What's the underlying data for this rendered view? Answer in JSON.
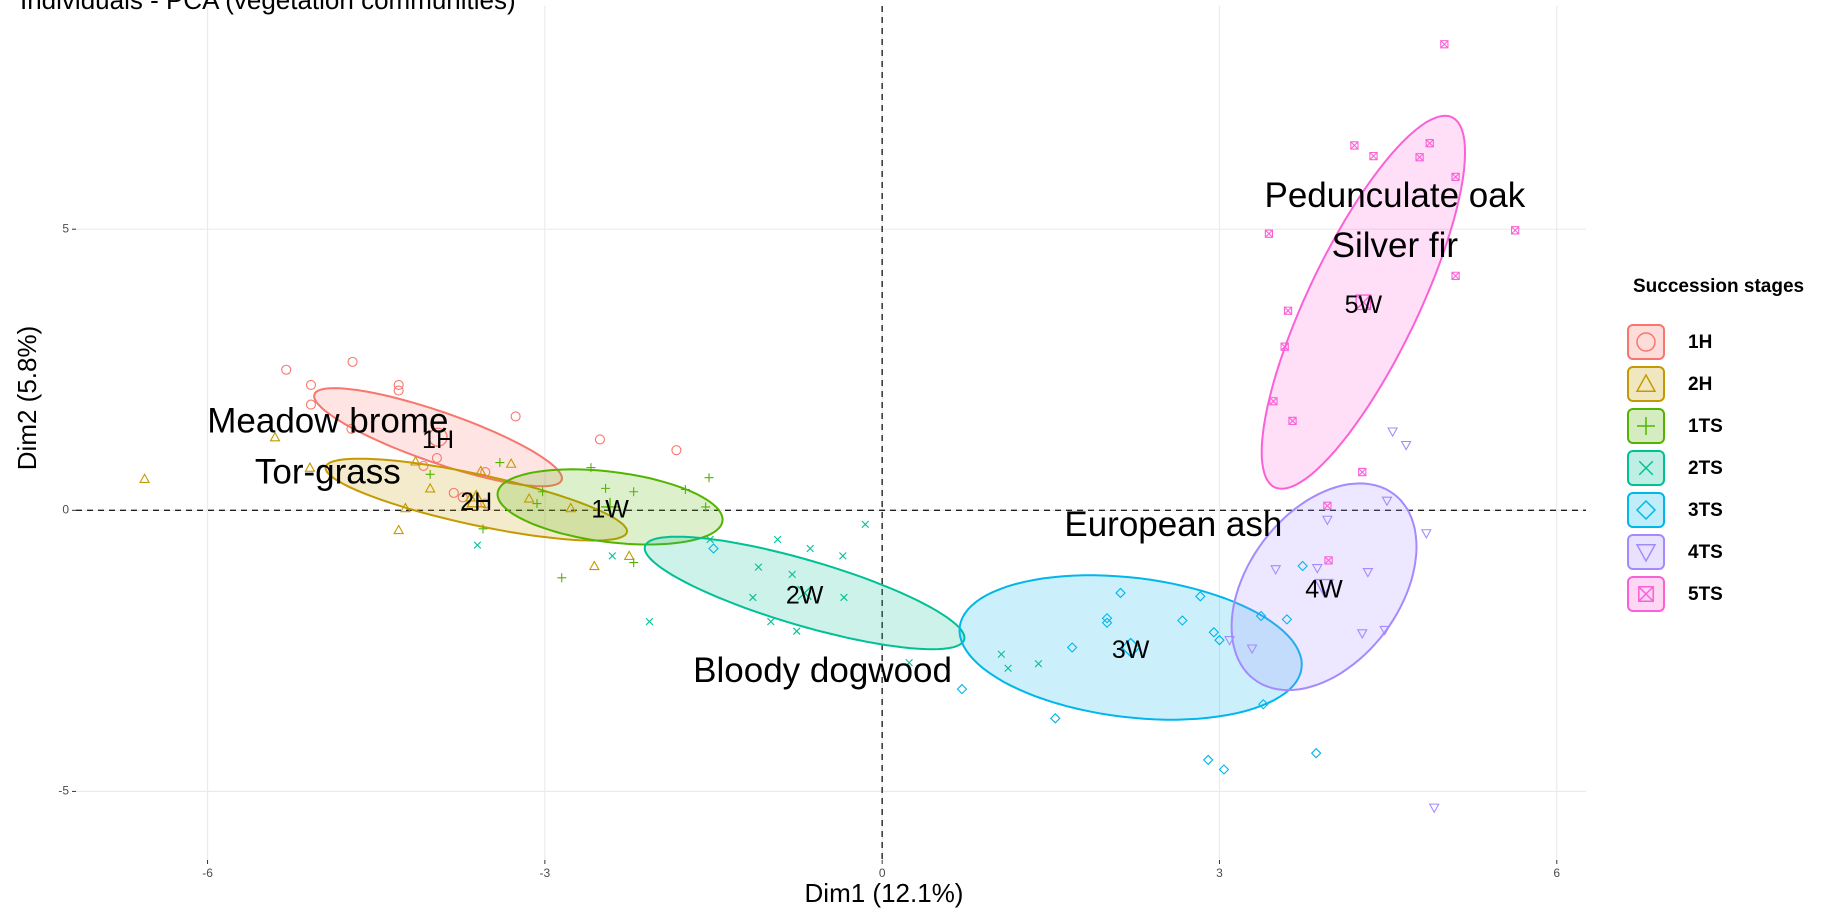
{
  "chart_data": {
    "type": "scatter",
    "title": "Individuals - PCA (vegetation communities)",
    "x_label": "Dim1 (12.1%)",
    "y_label": "Dim2 (5.8%)",
    "legend_title": "Succession stages",
    "legend_position": "right",
    "grid": true,
    "xlim": [
      -7.17,
      6.26
    ],
    "ylim": [
      -6.22,
      8.97
    ],
    "xticks": [
      -6,
      -3,
      0,
      3,
      6
    ],
    "yticks": [
      -5,
      0,
      5
    ],
    "reference_lines": {
      "x": 0,
      "y": 0
    },
    "series": [
      {
        "name": "1H",
        "color": "#F8766D",
        "marker": "circle",
        "x": [
          -5.3,
          -5.08,
          -4.71,
          -5.08,
          -4.3,
          -4.3,
          -4.72,
          -3.26,
          -2.51,
          -1.83,
          -3.96,
          -4.08,
          -3.53,
          -3.73,
          -3.53,
          -3.81
        ],
        "y": [
          2.5,
          2.23,
          2.64,
          1.88,
          2.23,
          2.13,
          1.45,
          1.67,
          1.26,
          1.07,
          0.93,
          0.79,
          0.68,
          0.23,
          0.12,
          0.31
        ],
        "ellipse": {
          "label": "1H",
          "center": [
            -3.95,
            1.3
          ],
          "axis_a": [
            1.1,
            -0.76
          ],
          "axis_b": [
            -0.07,
            -0.43
          ]
        }
      },
      {
        "name": "2H",
        "color": "#C49A00",
        "marker": "triangle",
        "x": [
          -6.56,
          -5.4,
          -5.09,
          -4.15,
          -3.57,
          -3.3,
          -3.66,
          -4.24,
          -4.3,
          -3.14,
          -2.77,
          -2.56,
          -2.25,
          -4.02
        ],
        "y": [
          0.56,
          1.3,
          0.76,
          0.87,
          0.7,
          0.83,
          0.23,
          0.04,
          -0.35,
          0.21,
          0.04,
          -0.99,
          -0.81,
          0.39
        ],
        "ellipse": {
          "label": "2H",
          "center": [
            -3.61,
            0.19
          ],
          "axis_a": [
            1.34,
            -0.58
          ],
          "axis_b": [
            -0.05,
            -0.44
          ]
        }
      },
      {
        "name": "1TS",
        "color": "#53B400",
        "marker": "plus",
        "x": [
          -3.4,
          -3.02,
          -2.59,
          -2.46,
          -2.21,
          -1.75,
          -1.54,
          -1.57,
          -3.55,
          -2.85,
          -2.21,
          -3.07,
          -4.02
        ],
        "y": [
          0.85,
          0.33,
          0.76,
          0.39,
          0.33,
          0.37,
          0.58,
          0.06,
          -0.33,
          -1.2,
          -0.93,
          0.12,
          0.64
        ],
        "ellipse": {
          "label": "1W",
          "center": [
            -2.42,
            0.06
          ],
          "axis_a": [
            1.0,
            -0.25
          ],
          "axis_b": [
            -0.04,
            -0.62
          ]
        }
      },
      {
        "name": "2TS",
        "color": "#00C094",
        "marker": "cross",
        "x": [
          -3.6,
          -2.4,
          -2.07,
          -1.53,
          -0.93,
          -0.64,
          -1.1,
          -0.8,
          -1.15,
          -0.34,
          -0.99,
          -0.76,
          -0.35,
          -0.15,
          0.24,
          1.06,
          1.12,
          1.39
        ],
        "y": [
          -0.62,
          -0.81,
          -1.98,
          -0.52,
          -0.52,
          -0.68,
          -1.01,
          -1.14,
          -1.55,
          -1.55,
          -1.98,
          -2.15,
          -0.81,
          -0.25,
          -2.71,
          -2.56,
          -2.81,
          -2.73
        ],
        "ellipse": {
          "label": "2W",
          "center": [
            -0.69,
            -1.47
          ],
          "axis_a": [
            1.42,
            -0.83
          ],
          "axis_b": [
            -0.08,
            -0.56
          ]
        }
      },
      {
        "name": "3TS",
        "color": "#00B6EB",
        "marker": "diamond",
        "x": [
          -1.5,
          0.71,
          1.54,
          1.69,
          2.0,
          2.12,
          2.0,
          2.67,
          2.83,
          2.95,
          3.0,
          3.37,
          2.9,
          3.04,
          3.39,
          3.86,
          3.74,
          3.6
        ],
        "y": [
          -0.68,
          -3.18,
          -3.7,
          -2.44,
          -1.92,
          -1.47,
          -2.0,
          -1.96,
          -1.53,
          -2.17,
          -2.31,
          -1.88,
          -4.44,
          -4.61,
          -3.45,
          -4.32,
          -0.99,
          -1.94
        ],
        "ellipse": {
          "label": "3W",
          "center": [
            2.21,
            -2.44
          ],
          "axis_a": [
            1.52,
            -0.37
          ],
          "axis_b": [
            -0.08,
            -1.23
          ]
        }
      },
      {
        "name": "4TS",
        "color": "#A58AFF",
        "marker": "down-triangle",
        "x": [
          4.54,
          4.66,
          3.96,
          4.49,
          4.84,
          3.5,
          3.87,
          4.32,
          3.29,
          4.27,
          4.47,
          4.91,
          3.09
        ],
        "y": [
          1.4,
          1.16,
          -0.17,
          0.17,
          -0.41,
          -1.05,
          -1.03,
          -1.1,
          -2.46,
          -2.19,
          -2.13,
          -5.29,
          -2.31
        ],
        "ellipse": {
          "label": "4W",
          "center": [
            3.93,
            -1.36
          ],
          "axis_a": [
            0.62,
            1.65
          ],
          "axis_b": [
            0.54,
            -0.81
          ]
        }
      },
      {
        "name": "5TS",
        "color": "#FB61D7",
        "marker": "box-x",
        "x": [
          5.0,
          4.2,
          4.37,
          4.78,
          4.87,
          5.1,
          3.44,
          5.63,
          5.1,
          3.61,
          3.58,
          3.48,
          3.65,
          4.27,
          3.96,
          3.97
        ],
        "y": [
          8.29,
          6.49,
          6.3,
          6.28,
          6.53,
          5.93,
          4.92,
          4.98,
          4.17,
          3.55,
          2.91,
          1.94,
          1.59,
          0.68,
          0.08,
          -0.89
        ],
        "ellipse": {
          "label": "5W",
          "center": [
            4.28,
            3.7
          ],
          "axis_a": [
            0.79,
            3.29
          ],
          "axis_b": [
            0.44,
            -0.43
          ]
        }
      }
    ],
    "annotations": [
      {
        "text": "Meadow brome",
        "x": -4.93,
        "y": 1.55
      },
      {
        "text": "Tor-grass",
        "x": -4.93,
        "y": 0.64
      },
      {
        "text": "Bloody dogwood",
        "x": -0.53,
        "y": -2.89
      },
      {
        "text": "European ash",
        "x": 2.59,
        "y": -0.29
      },
      {
        "text": "Pedunculate oak",
        "x": 4.56,
        "y": 5.56
      },
      {
        "text": "Silver fir",
        "x": 4.56,
        "y": 4.67
      }
    ]
  }
}
